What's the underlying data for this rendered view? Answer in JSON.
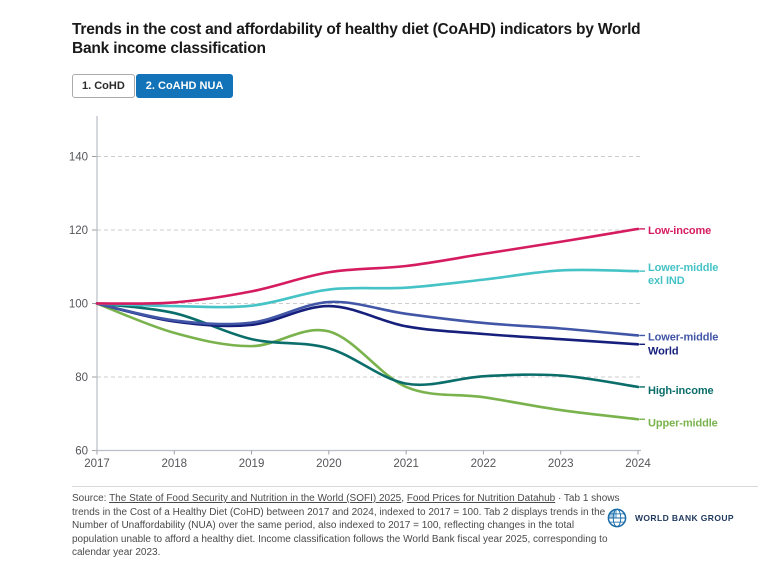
{
  "title": {
    "line1": "Trends in the cost and affordability of healthy diet (CoAHD) indicators by World",
    "line2": "Bank income classification"
  },
  "tabs": [
    {
      "label": "1. CoHD",
      "active": false
    },
    {
      "label": "2. CoAHD NUA",
      "active": true
    }
  ],
  "chart_data": {
    "type": "line",
    "x": [
      2017,
      2018,
      2019,
      2020,
      2021,
      2022,
      2023,
      2024
    ],
    "series": [
      {
        "name": "Low-income",
        "color": "#d61c60",
        "values": [
          100,
          100.3,
          103.3,
          108.5,
          110.2,
          113.5,
          116.8,
          120.3
        ],
        "label_lines": [
          "Low-income"
        ],
        "label_dy": 1
      },
      {
        "name": "Lower-middle exl IND",
        "color": "#46c3c6",
        "values": [
          100,
          99.3,
          99.4,
          103.8,
          104.3,
          106.5,
          109.0,
          108.8
        ],
        "label_lines": [
          "Lower-middle",
          "exl IND"
        ],
        "label_dy": 0
      },
      {
        "name": "Lower-middle",
        "color": "#4156a6",
        "values": [
          100,
          95.4,
          94.8,
          100.4,
          97.2,
          94.7,
          93.2,
          91.3
        ],
        "label_lines": [
          "Lower-middle"
        ],
        "label_dy": 1
      },
      {
        "name": "World",
        "color": "#16207c",
        "values": [
          100,
          95.1,
          94.2,
          99.3,
          93.8,
          91.7,
          90.3,
          88.9
        ],
        "label_lines": [
          "World"
        ],
        "label_dy": 6
      },
      {
        "name": "High-income",
        "color": "#0b6e6b",
        "values": [
          100,
          97.4,
          90.3,
          87.8,
          78.2,
          80.2,
          80.4,
          77.3
        ],
        "label_lines": [
          "High-income"
        ],
        "label_dy": 3
      },
      {
        "name": "Upper-middle",
        "color": "#7ab34d",
        "values": [
          100,
          92.0,
          88.4,
          92.4,
          77.3,
          74.5,
          71.0,
          68.5
        ],
        "label_lines": [
          "Upper-middle"
        ],
        "label_dy": 3
      }
    ],
    "ylim": [
      60,
      148
    ],
    "yticks": [
      60,
      80,
      100,
      120,
      140
    ],
    "xlabel": "",
    "ylabel": "",
    "grid": "horizontal-dashed",
    "legend_position": "line-end-labels-right"
  },
  "footer": {
    "source_prefix": "Source: ",
    "link1": "The State of Food Security and Nutrition in the World (SOFI) 2025",
    "separator": ", ",
    "link2": "Food Prices for Nutrition Datahub",
    "rest": " · Tab 1 shows trends in the Cost of a Healthy Diet (CoHD) between 2017 and 2024, indexed to 2017 = 100. Tab 2 displays trends in the Number of Unaffordability (NUA) over the same period, also indexed to 2017 = 100, reflecting changes in the total population unable to afford a healthy diet. Income classification follows the World Bank fiscal year 2025, corresponding to calendar year 2023."
  },
  "logo": {
    "text": "WORLD BANK GROUP"
  },
  "colors": {
    "active_tab_bg": "#1273b8",
    "gridline": "#cdcdcd",
    "axis_line": "#b9bec6",
    "axis_text": "#55565a",
    "footer_text": "#4a4a4a",
    "logo_text": "#213a5e"
  }
}
